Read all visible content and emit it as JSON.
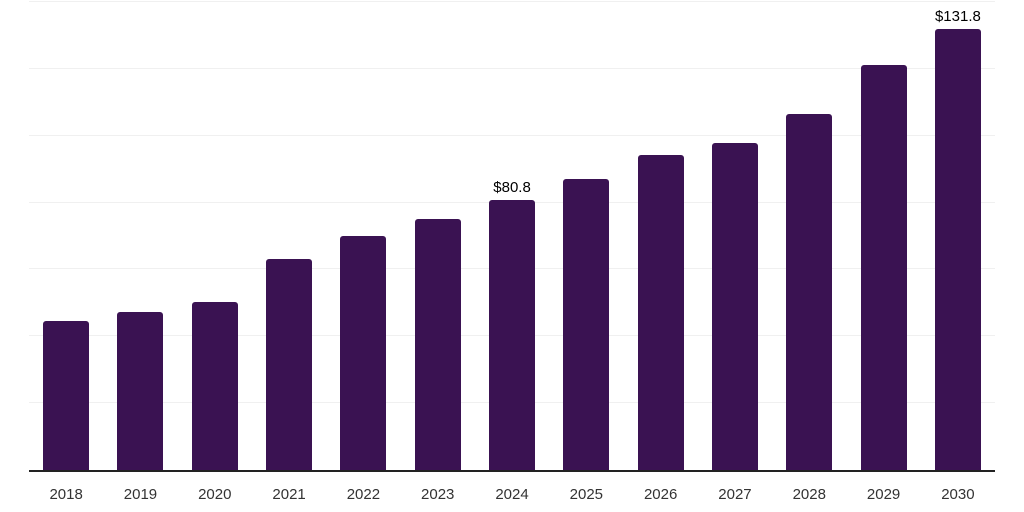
{
  "chart_data": {
    "type": "bar",
    "title": "",
    "categories": [
      "2018",
      "2019",
      "2020",
      "2021",
      "2022",
      "2023",
      "2024",
      "2025",
      "2026",
      "2027",
      "2028",
      "2029",
      "2030"
    ],
    "values": [
      44.5,
      47.3,
      50.2,
      63.0,
      70.0,
      75.2,
      80.8,
      87.1,
      94.3,
      97.9,
      106.4,
      121.3,
      131.8
    ],
    "data_labels": {
      "2024": "$80.8",
      "2030": "$131.8"
    },
    "xlabel": "",
    "ylabel": "",
    "ylim": [
      0,
      140
    ],
    "gridline_interval": 20,
    "grid": true,
    "legend": false,
    "colors": {
      "bar": "#3A1252",
      "axis_line": "#222222",
      "gridline": "#f0f0f0",
      "x_tick_label": "#333333",
      "data_label": "#000000",
      "background": "#ffffff"
    }
  }
}
